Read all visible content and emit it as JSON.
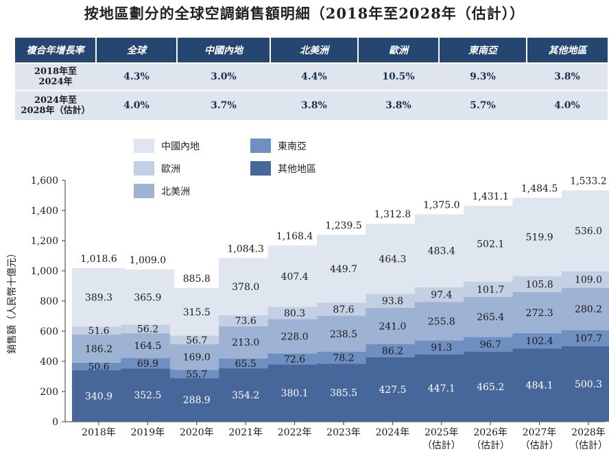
{
  "title": "按地區劃分的全球空調銷售額明細（2018年至2028年（估計））",
  "table": {
    "headers": [
      "複合年增長率",
      "全球",
      "中國內地",
      "北美洲",
      "歐洲",
      "東南亞",
      "其他地區"
    ],
    "rows": [
      {
        "label_line1": "2018年至",
        "label_line2": "2024年",
        "values": [
          "4.3%",
          "3.0%",
          "4.4%",
          "10.5%",
          "9.3%",
          "3.8%"
        ]
      },
      {
        "label_line1": "2024年至",
        "label_line2": "2028年（估計）",
        "values": [
          "4.0%",
          "3.7%",
          "3.8%",
          "3.8%",
          "5.7%",
          "4.0%"
        ]
      }
    ]
  },
  "colors": {
    "header_bg": "#244671",
    "table_body_bg": "#dfe5ef",
    "china": "#dfe6f0",
    "europe": "#c3cfe2",
    "north_america": "#9eb2d3",
    "southeast_asia": "#6f8fc0",
    "others": "#47679b"
  },
  "chart_data": {
    "type": "bar",
    "stacked": true,
    "categories": [
      {
        "line1": "2018年",
        "line2": ""
      },
      {
        "line1": "2019年",
        "line2": ""
      },
      {
        "line1": "2020年",
        "line2": ""
      },
      {
        "line1": "2021年",
        "line2": ""
      },
      {
        "line1": "2022年",
        "line2": ""
      },
      {
        "line1": "2023年",
        "line2": ""
      },
      {
        "line1": "2024年",
        "line2": ""
      },
      {
        "line1": "2025年",
        "line2": "（估計）"
      },
      {
        "line1": "2026年",
        "line2": "（估計）"
      },
      {
        "line1": "2027年",
        "line2": "（估計）"
      },
      {
        "line1": "2028年",
        "line2": "（估計）"
      }
    ],
    "ylabel": "銷售額（人民幣十億元）",
    "ylim": [
      0,
      1600
    ],
    "yticks": [
      0,
      200,
      400,
      600,
      800,
      1000,
      1200,
      1400,
      1600
    ],
    "ytick_labels": [
      "0",
      "200",
      "400",
      "600",
      "800",
      "1,000",
      "1,200",
      "1,400",
      "1,600"
    ],
    "series": [
      {
        "name": "其他地區",
        "key": "others",
        "label_color": "#ffffff",
        "values": [
          340.9,
          352.5,
          288.9,
          354.2,
          380.1,
          385.5,
          427.5,
          447.1,
          465.2,
          484.1,
          500.3
        ],
        "labels": [
          "340.9",
          "352.5",
          "288.9",
          "354.2",
          "380.1",
          "385.5",
          "427.5",
          "447.1",
          "465.2",
          "484.1",
          "500.3"
        ]
      },
      {
        "name": "東南亞",
        "key": "southeast_asia",
        "label_color": "#1a1a1a",
        "values": [
          50.6,
          69.9,
          55.7,
          65.5,
          72.6,
          78.2,
          86.2,
          91.3,
          96.7,
          102.4,
          107.7
        ],
        "labels": [
          "50.6",
          "69.9",
          "55.7",
          "65.5",
          "72.6",
          "78.2",
          "86.2",
          "91.3",
          "96.7",
          "102.4",
          "107.7"
        ]
      },
      {
        "name": "北美洲",
        "key": "north_america",
        "label_color": "#1a1a1a",
        "values": [
          186.2,
          164.5,
          169.0,
          213.0,
          228.0,
          238.5,
          241.0,
          255.8,
          265.4,
          272.3,
          280.2
        ],
        "labels": [
          "186.2",
          "164.5",
          "169.0",
          "213.0",
          "228.0",
          "238.5",
          "241.0",
          "255.8",
          "265.4",
          "272.3",
          "280.2"
        ]
      },
      {
        "name": "歐洲",
        "key": "europe",
        "label_color": "#1a1a1a",
        "values": [
          51.6,
          56.2,
          56.7,
          73.6,
          80.3,
          87.6,
          93.8,
          97.4,
          101.7,
          105.8,
          109.0
        ],
        "labels": [
          "51.6",
          "56.2",
          "56.7",
          "73.6",
          "80.3",
          "87.6",
          "93.8",
          "97.4",
          "101.7",
          "105.8",
          "109.0"
        ]
      },
      {
        "name": "中國內地",
        "key": "china",
        "label_color": "#1a1a1a",
        "values": [
          389.3,
          365.9,
          315.5,
          378.0,
          407.4,
          449.7,
          464.3,
          483.4,
          502.1,
          519.9,
          536.0
        ],
        "labels": [
          "389.3",
          "365.9",
          "315.5",
          "378.0",
          "407.4",
          "449.7",
          "464.3",
          "483.4",
          "502.1",
          "519.9",
          "536.0"
        ]
      }
    ],
    "totals": [
      1018.6,
      1009.0,
      885.8,
      1084.3,
      1168.4,
      1239.5,
      1312.8,
      1375.0,
      1431.1,
      1484.5,
      1533.2
    ],
    "total_labels": [
      "1,018.6",
      "1,009.0",
      "885.8",
      "1,084.3",
      "1,168.4",
      "1,239.5",
      "1,312.8",
      "1,375.0",
      "1,431.1",
      "1,484.5",
      "1,533.2"
    ],
    "legend": [
      {
        "name": "中國內地",
        "key": "china"
      },
      {
        "name": "歐洲",
        "key": "europe"
      },
      {
        "name": "北美洲",
        "key": "north_america"
      },
      {
        "name": "東南亞",
        "key": "southeast_asia"
      },
      {
        "name": "其他地區",
        "key": "others"
      }
    ],
    "legend_position": "top-left",
    "grid": false
  }
}
